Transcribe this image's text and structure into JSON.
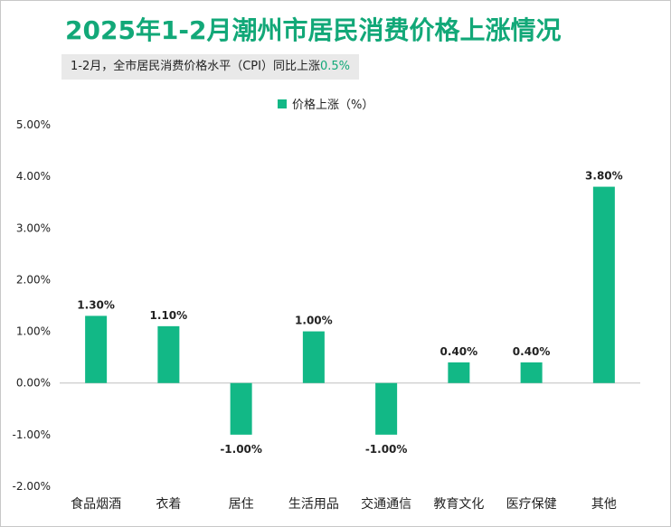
{
  "title": "2025年1-2月潮州市居民消费价格上涨情况",
  "subtitle": {
    "text": "1-2月，全市居民消费价格水平（CPI）同比上涨",
    "value": "0.5%"
  },
  "colors": {
    "bar": "#12b886",
    "title": "#12a878",
    "gridline": "#d9d9d9",
    "axis": "#bfbfbf"
  },
  "chart_data": {
    "type": "bar",
    "categories": [
      "食品烟酒",
      "衣着",
      "居住",
      "生活用品",
      "交通通信",
      "教育文化",
      "医疗保健",
      "其他"
    ],
    "series": [
      {
        "name": "价格上涨（%）",
        "values": [
          1.3,
          1.1,
          -1.0,
          1.0,
          -1.0,
          0.4,
          0.4,
          3.8
        ],
        "labels": [
          "1.30%",
          "1.10%",
          "-1.00%",
          "1.00%",
          "-1.00%",
          "0.40%",
          "0.40%",
          "3.80%"
        ]
      }
    ],
    "ylim": [
      -2,
      5
    ],
    "yticks": [
      5,
      4,
      3,
      2,
      1,
      0,
      -1,
      -2
    ],
    "ytick_labels": [
      "5.00%",
      "4.00%",
      "3.00%",
      "2.00%",
      "1.00%",
      "0.00%",
      "-1.00%",
      "-2.00%"
    ],
    "legend_position": "top-center",
    "grid": false
  }
}
